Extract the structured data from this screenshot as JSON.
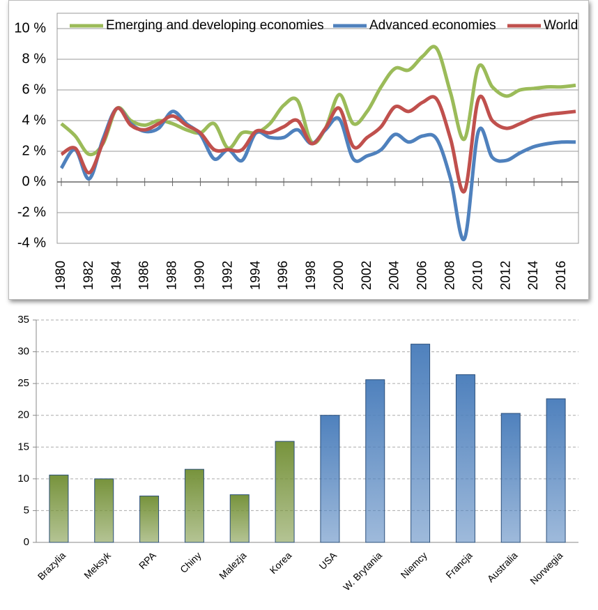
{
  "chart_data": [
    {
      "type": "line",
      "x": [
        1980,
        1981,
        1982,
        1983,
        1984,
        1985,
        1986,
        1987,
        1988,
        1989,
        1990,
        1991,
        1992,
        1993,
        1994,
        1995,
        1996,
        1997,
        1998,
        1999,
        2000,
        2001,
        2002,
        2003,
        2004,
        2005,
        2006,
        2007,
        2008,
        2009,
        2010,
        2011,
        2012,
        2013,
        2014,
        2015,
        2016,
        2017
      ],
      "series": [
        {
          "name": "Emerging and developing economies",
          "color": "#9bbb59",
          "values": [
            3.8,
            3.0,
            1.8,
            2.5,
            4.8,
            4.0,
            3.7,
            4.0,
            3.8,
            3.4,
            3.2,
            3.8,
            2.2,
            3.2,
            3.2,
            3.8,
            5.0,
            5.3,
            2.6,
            3.5,
            5.7,
            3.8,
            4.6,
            6.2,
            7.4,
            7.3,
            8.2,
            8.7,
            5.8,
            2.8,
            7.5,
            6.2,
            5.6,
            6.0,
            6.1,
            6.2,
            6.2,
            6.3
          ]
        },
        {
          "name": "Advanced economies",
          "color": "#4f81bd",
          "values": [
            0.9,
            2.1,
            0.2,
            2.8,
            4.8,
            3.8,
            3.3,
            3.5,
            4.6,
            3.8,
            3.1,
            1.5,
            2.1,
            1.4,
            3.2,
            2.9,
            2.9,
            3.4,
            2.5,
            3.4,
            4.1,
            1.5,
            1.7,
            2.1,
            3.1,
            2.6,
            3.0,
            2.8,
            0.2,
            -3.7,
            3.3,
            1.6,
            1.4,
            1.9,
            2.3,
            2.5,
            2.6,
            2.6
          ]
        },
        {
          "name": "World",
          "color": "#c0504d",
          "values": [
            1.8,
            2.2,
            0.6,
            2.6,
            4.8,
            3.7,
            3.4,
            3.8,
            4.3,
            3.7,
            3.2,
            2.1,
            2.1,
            2.1,
            3.3,
            3.2,
            3.6,
            4.0,
            2.5,
            3.5,
            4.8,
            2.3,
            2.9,
            3.6,
            4.9,
            4.6,
            5.2,
            5.4,
            2.8,
            -0.6,
            5.4,
            4.0,
            3.5,
            3.8,
            4.2,
            4.4,
            4.5,
            4.6
          ]
        }
      ],
      "xlim": [
        1979.7,
        2017.2
      ],
      "xticks": [
        1980,
        1982,
        1984,
        1986,
        1988,
        1990,
        1992,
        1994,
        1996,
        1998,
        2000,
        2002,
        2004,
        2006,
        2008,
        2010,
        2012,
        2014,
        2016
      ],
      "ylim": [
        -4,
        10
      ],
      "yticks": [
        {
          "value": -4,
          "label": "-4 %"
        },
        {
          "value": -2,
          "label": "-2 %"
        },
        {
          "value": 0,
          "label": "0 %"
        },
        {
          "value": 2,
          "label": "2 %"
        },
        {
          "value": 4,
          "label": "4 %"
        },
        {
          "value": 6,
          "label": "6 %"
        },
        {
          "value": 8,
          "label": "8 %"
        },
        {
          "value": 10,
          "label": "10 %"
        }
      ],
      "grid": true,
      "legend": "top"
    },
    {
      "type": "bar",
      "categories": [
        "Brazylia",
        "Meksyk",
        "RPA",
        "Chiny",
        "Malezja",
        "Korea",
        "USA",
        "W. Brytania",
        "Niemcy",
        "Francja",
        "Australia",
        "Norwegia"
      ],
      "values": [
        10.6,
        10.0,
        7.3,
        11.5,
        7.5,
        15.9,
        20.0,
        25.6,
        31.2,
        26.4,
        20.3,
        22.6
      ],
      "colors": [
        "#77933c",
        "#77933c",
        "#77933c",
        "#77933c",
        "#77933c",
        "#77933c",
        "#4f81bd",
        "#4f81bd",
        "#4f81bd",
        "#4f81bd",
        "#4f81bd",
        "#4f81bd"
      ],
      "ylim": [
        0,
        35
      ],
      "yticks": [
        0,
        5,
        10,
        15,
        20,
        25,
        30,
        35
      ],
      "grid": true
    }
  ]
}
